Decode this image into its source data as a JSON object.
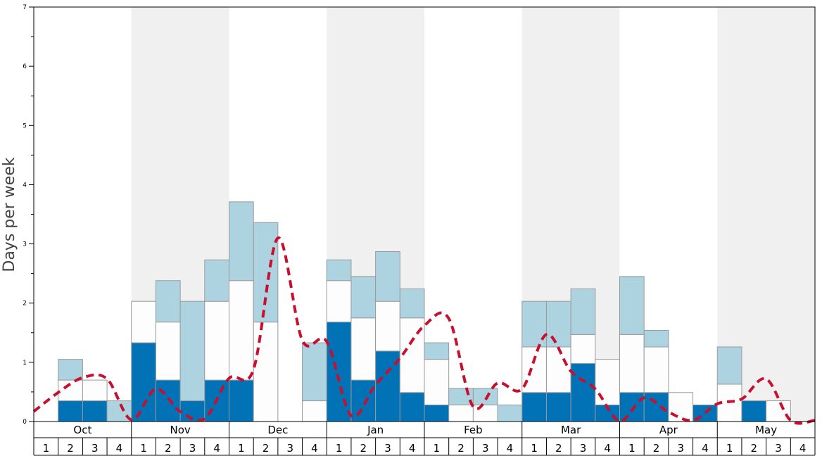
{
  "chart_data": {
    "type": "bar",
    "ylabel": "Days per week",
    "ylim": [
      0,
      7
    ],
    "yticks": [
      "0",
      "1",
      "2",
      "3",
      "4",
      "5",
      "6",
      "7"
    ],
    "months": [
      "Oct",
      "Nov",
      "Dec",
      "Jan",
      "Feb",
      "Mar",
      "Apr",
      "May"
    ],
    "week_labels": [
      "1",
      "2",
      "3",
      "4"
    ],
    "shaded_months": [
      "Nov",
      "Jan",
      "Mar",
      "May"
    ],
    "stacked": true,
    "series": [
      {
        "values": [
          0,
          0.35,
          0.35,
          0,
          1.33,
          0.7,
          0.35,
          0.7,
          0.7,
          0,
          0,
          0,
          1.68,
          0.7,
          1.19,
          0.49,
          0.28,
          0,
          0,
          0,
          0.49,
          0.49,
          0.98,
          0.28,
          0.49,
          0.49,
          0,
          0.28,
          0,
          0.35,
          0,
          0
        ]
      },
      {
        "values": [
          0,
          0.35,
          0.35,
          0,
          0.7,
          0.98,
          0,
          1.33,
          1.68,
          1.68,
          0,
          0.35,
          0.7,
          1.05,
          0.84,
          1.26,
          0.77,
          0.28,
          0.28,
          0,
          0.77,
          0.77,
          0.49,
          0.77,
          0.98,
          0.77,
          0.49,
          0,
          0.63,
          0,
          0.35,
          0
        ]
      },
      {
        "values": [
          0,
          0.35,
          0,
          0.35,
          0,
          0.7,
          1.68,
          0.7,
          1.33,
          1.68,
          0,
          0.98,
          0.35,
          0.7,
          0.84,
          0.49,
          0.28,
          0.28,
          0.28,
          0.28,
          0.77,
          0.77,
          0.77,
          0,
          0.98,
          0.28,
          0,
          0,
          0.63,
          0,
          0,
          0
        ]
      }
    ],
    "colors": {
      "series": [
        "#0072b5",
        "#fdfdfd",
        "#aed3e0"
      ],
      "line": "#c8102e",
      "shade": "#f0f0f0",
      "bar_border": "#999999"
    },
    "line": {
      "style": "dashed",
      "values": [
        0.17,
        0.49,
        0.74,
        0.72,
        0.03,
        0.55,
        0.17,
        0.05,
        0.73,
        0.88,
        3.1,
        1.37,
        1.35,
        0.1,
        0.62,
        1.07,
        1.62,
        1.74,
        0.25,
        0.65,
        0.55,
        1.47,
        0.85,
        0.55,
        0.01,
        0.4,
        0.16,
        0.02,
        0.3,
        0.38,
        0.72,
        0.02
      ]
    }
  }
}
